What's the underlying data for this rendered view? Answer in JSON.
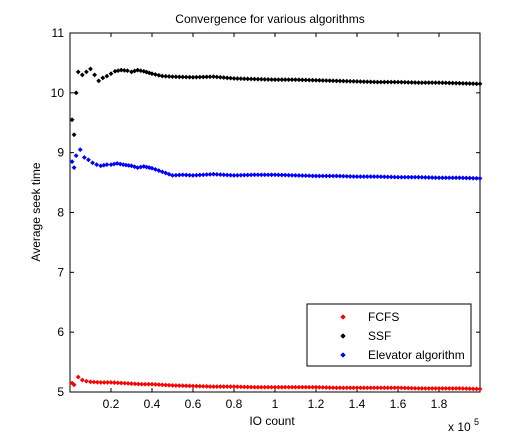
{
  "chart_data": {
    "type": "scatter",
    "title": "Convergence for various algorithms",
    "xlabel": "IO count",
    "ylabel": "Average seek time",
    "x_exponent_label": "x 10",
    "x_exponent_power": "5",
    "xlim": [
      0,
      200000
    ],
    "ylim": [
      5,
      11
    ],
    "x_ticks": [
      20000,
      40000,
      60000,
      80000,
      100000,
      120000,
      140000,
      160000,
      180000
    ],
    "x_tick_labels": [
      "0.2",
      "0.4",
      "0.6",
      "0.8",
      "1",
      "1.2",
      "1.4",
      "1.6",
      "1.8"
    ],
    "y_ticks": [
      5,
      6,
      7,
      8,
      9,
      10,
      11
    ],
    "y_tick_labels": [
      "5",
      "6",
      "7",
      "8",
      "9",
      "10",
      "11"
    ],
    "grid": false,
    "legend_position": "bottom-right",
    "marker": "diamond",
    "series": [
      {
        "name": "FCFS",
        "color": "#ff0000",
        "points": [
          [
            1000,
            5.15
          ],
          [
            2000,
            5.12
          ],
          [
            4000,
            5.25
          ],
          [
            6000,
            5.2
          ],
          [
            8000,
            5.18
          ],
          [
            10000,
            5.17
          ],
          [
            15000,
            5.16
          ],
          [
            20000,
            5.16
          ],
          [
            25000,
            5.15
          ],
          [
            30000,
            5.14
          ],
          [
            35000,
            5.13
          ],
          [
            40000,
            5.13
          ],
          [
            50000,
            5.11
          ],
          [
            60000,
            5.1
          ],
          [
            70000,
            5.09
          ],
          [
            80000,
            5.09
          ],
          [
            90000,
            5.08
          ],
          [
            100000,
            5.08
          ],
          [
            110000,
            5.08
          ],
          [
            120000,
            5.08
          ],
          [
            130000,
            5.07
          ],
          [
            140000,
            5.07
          ],
          [
            150000,
            5.07
          ],
          [
            160000,
            5.07
          ],
          [
            170000,
            5.06
          ],
          [
            180000,
            5.06
          ],
          [
            190000,
            5.06
          ],
          [
            200000,
            5.05
          ]
        ]
      },
      {
        "name": "SSF",
        "color": "#000000",
        "points": [
          [
            1000,
            9.55
          ],
          [
            2000,
            9.3
          ],
          [
            3000,
            10.0
          ],
          [
            4000,
            10.35
          ],
          [
            6000,
            10.3
          ],
          [
            8000,
            10.35
          ],
          [
            10000,
            10.4
          ],
          [
            12000,
            10.3
          ],
          [
            14000,
            10.2
          ],
          [
            16000,
            10.25
          ],
          [
            18000,
            10.28
          ],
          [
            20000,
            10.32
          ],
          [
            22000,
            10.36
          ],
          [
            25000,
            10.38
          ],
          [
            28000,
            10.37
          ],
          [
            30000,
            10.35
          ],
          [
            33000,
            10.38
          ],
          [
            36000,
            10.36
          ],
          [
            40000,
            10.32
          ],
          [
            45000,
            10.28
          ],
          [
            50000,
            10.27
          ],
          [
            60000,
            10.26
          ],
          [
            70000,
            10.27
          ],
          [
            80000,
            10.24
          ],
          [
            90000,
            10.23
          ],
          [
            100000,
            10.22
          ],
          [
            110000,
            10.22
          ],
          [
            120000,
            10.21
          ],
          [
            130000,
            10.2
          ],
          [
            140000,
            10.19
          ],
          [
            150000,
            10.18
          ],
          [
            160000,
            10.18
          ],
          [
            170000,
            10.17
          ],
          [
            180000,
            10.17
          ],
          [
            190000,
            10.16
          ],
          [
            200000,
            10.15
          ]
        ]
      },
      {
        "name": "Elevator algorithm",
        "color": "#0000ff",
        "points": [
          [
            1000,
            8.85
          ],
          [
            2000,
            8.75
          ],
          [
            3000,
            8.95
          ],
          [
            5000,
            9.05
          ],
          [
            7000,
            8.92
          ],
          [
            9000,
            8.88
          ],
          [
            11000,
            8.83
          ],
          [
            13000,
            8.8
          ],
          [
            15000,
            8.78
          ],
          [
            18000,
            8.8
          ],
          [
            20000,
            8.8
          ],
          [
            23000,
            8.82
          ],
          [
            26000,
            8.8
          ],
          [
            30000,
            8.78
          ],
          [
            33000,
            8.75
          ],
          [
            36000,
            8.77
          ],
          [
            40000,
            8.74
          ],
          [
            45000,
            8.68
          ],
          [
            50000,
            8.62
          ],
          [
            55000,
            8.63
          ],
          [
            60000,
            8.62
          ],
          [
            70000,
            8.64
          ],
          [
            80000,
            8.62
          ],
          [
            90000,
            8.63
          ],
          [
            100000,
            8.63
          ],
          [
            110000,
            8.62
          ],
          [
            120000,
            8.61
          ],
          [
            130000,
            8.61
          ],
          [
            140000,
            8.6
          ],
          [
            150000,
            8.6
          ],
          [
            160000,
            8.59
          ],
          [
            170000,
            8.59
          ],
          [
            180000,
            8.58
          ],
          [
            190000,
            8.58
          ],
          [
            200000,
            8.57
          ]
        ]
      }
    ]
  }
}
